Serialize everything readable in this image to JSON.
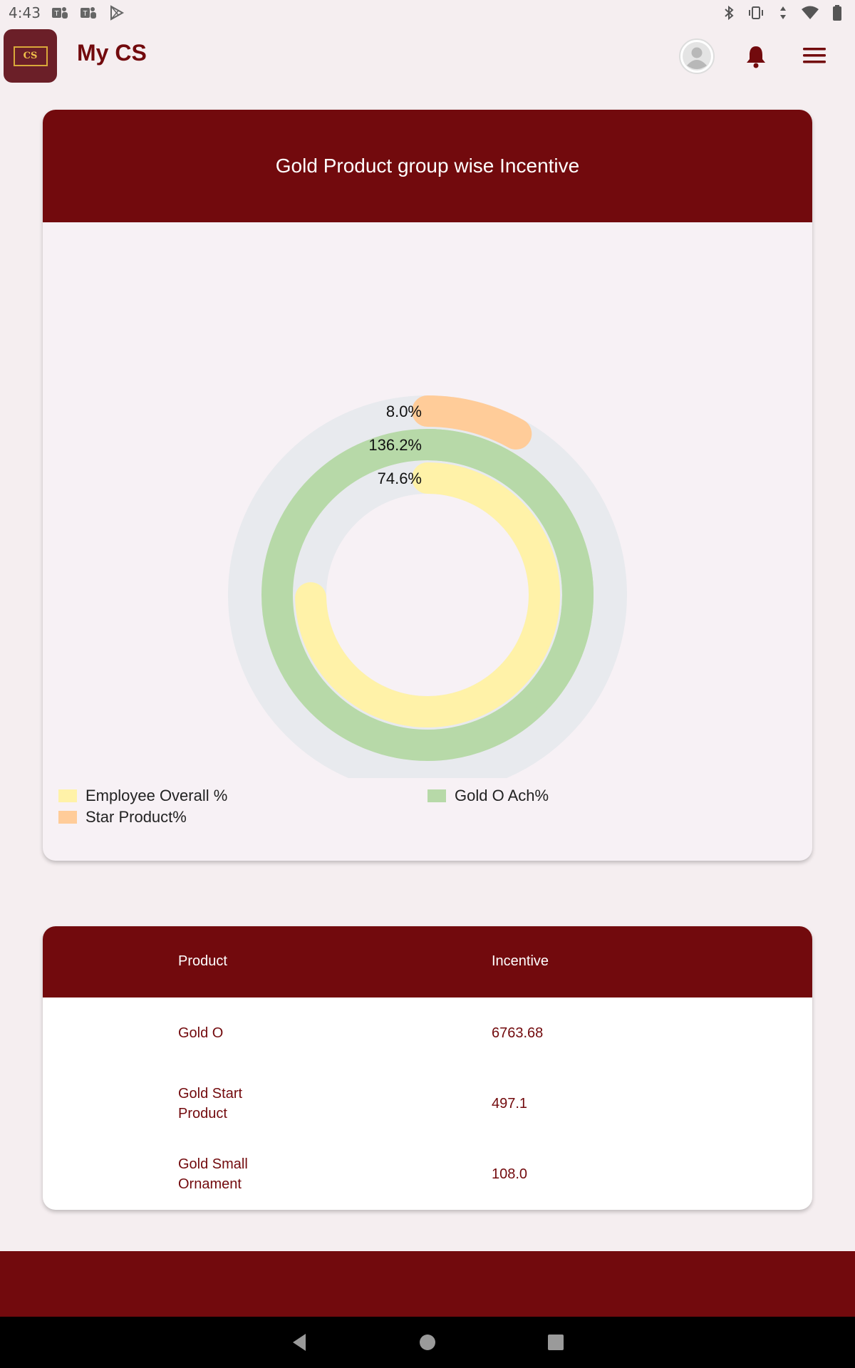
{
  "status_bar": {
    "time": "4:43",
    "left_icons": [
      "teams-icon",
      "teams-icon",
      "play-store-icon"
    ],
    "right_icons": [
      "bluetooth-icon",
      "vibrate-icon",
      "data-arrows-icon",
      "wifi-icon",
      "battery-icon"
    ]
  },
  "app_bar": {
    "logo_text": "CS",
    "title": "My CS",
    "icons": [
      "avatar-icon",
      "bell-icon",
      "hamburger-menu-icon"
    ]
  },
  "chart_card": {
    "title": "Gold Product group wise Incentive"
  },
  "chart_data": {
    "type": "radial-bar",
    "title": "Gold Product group wise Incentive",
    "max": 100,
    "series": [
      {
        "name": "Star Product%",
        "value": 8.0,
        "label": "8.0%",
        "color": "#ffcc99"
      },
      {
        "name": "Gold O Ach%",
        "value": 136.2,
        "label": "136.2%",
        "color": "#b7d9a8"
      },
      {
        "name": "Employee Overall %",
        "value": 74.6,
        "label": "74.6%",
        "color": "#fff2a8"
      }
    ],
    "track_color": "#e8eaee",
    "legend_position": "bottom",
    "legend": [
      {
        "label": "Employee Overall %",
        "color": "#fff2a8"
      },
      {
        "label": "Gold O Ach%",
        "color": "#b7d9a8"
      },
      {
        "label": "Star Product%",
        "color": "#ffcc99"
      }
    ]
  },
  "table": {
    "headers": {
      "product": "Product",
      "incentive": "Incentive"
    },
    "rows": [
      {
        "product": "Gold O",
        "incentive": "6763.68"
      },
      {
        "product": "Gold Start Product",
        "incentive": "497.1"
      },
      {
        "product": "Gold Small Ornament",
        "incentive": "108.0"
      }
    ]
  },
  "nav_bar": {
    "icons": [
      "back-icon",
      "home-icon",
      "recents-icon"
    ]
  },
  "colors": {
    "brand": "#720a0d",
    "background": "#f5eef0"
  }
}
